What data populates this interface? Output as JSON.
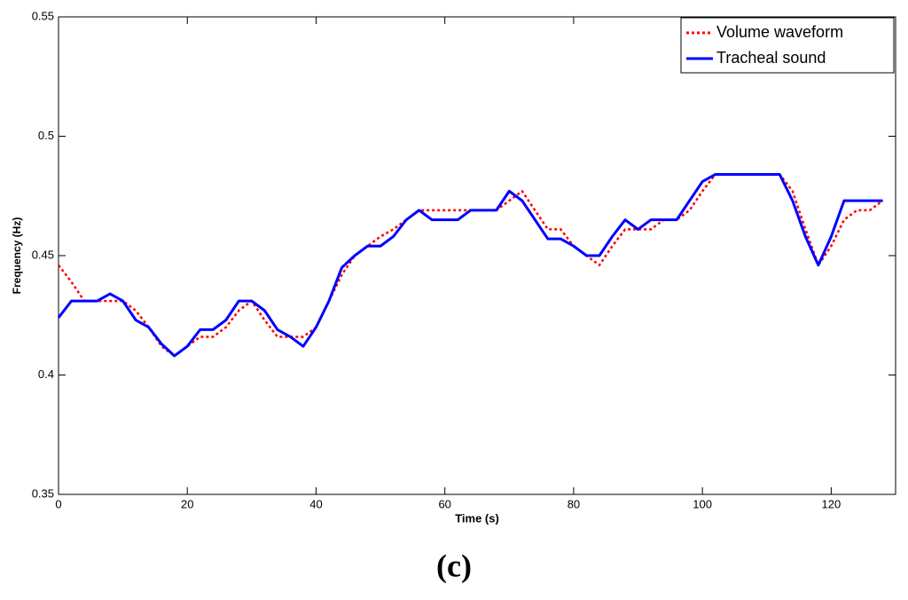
{
  "chart_data": {
    "type": "line",
    "x_label": "Time (s)",
    "y_label": "Frequency (Hz)",
    "caption": "(c)",
    "x": [
      0,
      2,
      4,
      6,
      8,
      10,
      12,
      14,
      16,
      18,
      20,
      22,
      24,
      26,
      28,
      30,
      32,
      34,
      36,
      38,
      40,
      42,
      44,
      46,
      48,
      50,
      52,
      54,
      56,
      58,
      60,
      62,
      64,
      66,
      68,
      70,
      72,
      74,
      76,
      78,
      80,
      82,
      84,
      86,
      88,
      90,
      92,
      94,
      96,
      98,
      100,
      102,
      104,
      106,
      108,
      110,
      112,
      114,
      116,
      118,
      120,
      122,
      124,
      126,
      128
    ],
    "series": [
      {
        "name": "Volume waveform",
        "color": "#ff0000",
        "dash": "dotted",
        "values": [
          0.446,
          0.439,
          0.431,
          0.431,
          0.431,
          0.431,
          0.427,
          0.42,
          0.412,
          0.408,
          0.412,
          0.416,
          0.416,
          0.42,
          0.427,
          0.431,
          0.423,
          0.416,
          0.416,
          0.416,
          0.42,
          0.431,
          0.442,
          0.45,
          0.454,
          0.458,
          0.461,
          0.465,
          0.469,
          0.469,
          0.469,
          0.469,
          0.469,
          0.469,
          0.469,
          0.473,
          0.477,
          0.469,
          0.461,
          0.461,
          0.454,
          0.45,
          0.446,
          0.454,
          0.461,
          0.461,
          0.461,
          0.465,
          0.465,
          0.469,
          0.477,
          0.484,
          0.484,
          0.484,
          0.484,
          0.484,
          0.484,
          0.477,
          0.461,
          0.446,
          0.454,
          0.465,
          0.469,
          0.469,
          0.473
        ]
      },
      {
        "name": "Tracheal sound",
        "color": "#0000ff",
        "dash": "solid",
        "values": [
          0.424,
          0.431,
          0.431,
          0.431,
          0.434,
          0.431,
          0.423,
          0.42,
          0.413,
          0.408,
          0.412,
          0.419,
          0.419,
          0.423,
          0.431,
          0.431,
          0.427,
          0.419,
          0.416,
          0.412,
          0.42,
          0.431,
          0.445,
          0.45,
          0.454,
          0.454,
          0.458,
          0.465,
          0.469,
          0.465,
          0.465,
          0.465,
          0.469,
          0.469,
          0.469,
          0.477,
          0.473,
          0.465,
          0.457,
          0.457,
          0.454,
          0.45,
          0.45,
          0.458,
          0.465,
          0.461,
          0.465,
          0.465,
          0.465,
          0.473,
          0.481,
          0.484,
          0.484,
          0.484,
          0.484,
          0.484,
          0.484,
          0.473,
          0.458,
          0.446,
          0.458,
          0.473,
          0.473,
          0.473,
          0.473
        ]
      }
    ],
    "xlim": [
      0,
      130
    ],
    "xticks": [
      0,
      20,
      40,
      60,
      80,
      100,
      120
    ],
    "ylim": [
      0.35,
      0.55
    ],
    "yticks": [
      0.35,
      0.4,
      0.45,
      0.5,
      0.55
    ],
    "legend": "top-right"
  }
}
